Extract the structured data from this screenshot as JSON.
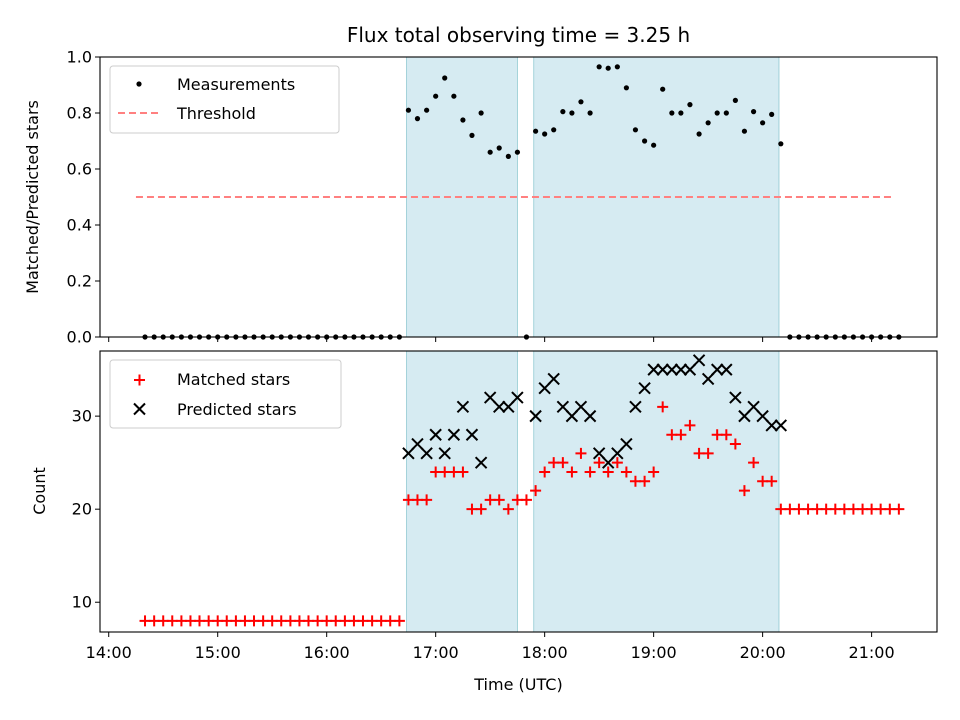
{
  "chart_data": {
    "title": "Flux total observing time = 3.25 h",
    "xlabel": "Time (UTC)",
    "x_ticks": [
      "14:00",
      "15:00",
      "16:00",
      "17:00",
      "18:00",
      "19:00",
      "20:00",
      "21:00"
    ],
    "x_range_hours": [
      13.92,
      21.6
    ],
    "shaded_intervals_hours": [
      [
        16.733,
        17.75
      ],
      [
        17.9,
        20.15
      ]
    ],
    "panels": [
      {
        "type": "scatter",
        "ylabel": "Matched/Predicted stars",
        "ylim": [
          0,
          1.0
        ],
        "y_ticks": [
          "0.0",
          "0.2",
          "0.4",
          "0.6",
          "0.8",
          "1.0"
        ],
        "legend_position": "upper-left",
        "series": [
          {
            "name": "Measurements",
            "marker": "dot",
            "color": "#000000",
            "x": [
              14.333,
              14.417,
              14.5,
              14.583,
              14.667,
              14.75,
              14.833,
              14.917,
              15.0,
              15.083,
              15.167,
              15.25,
              15.333,
              15.417,
              15.5,
              15.583,
              15.667,
              15.75,
              15.833,
              15.917,
              16.0,
              16.083,
              16.167,
              16.25,
              16.333,
              16.417,
              16.5,
              16.583,
              16.667,
              16.75,
              16.833,
              16.917,
              17.0,
              17.083,
              17.167,
              17.25,
              17.333,
              17.417,
              17.5,
              17.583,
              17.667,
              17.75,
              17.833,
              17.917,
              18.0,
              18.083,
              18.167,
              18.25,
              18.333,
              18.417,
              18.5,
              18.583,
              18.667,
              18.75,
              18.833,
              18.917,
              19.0,
              19.083,
              19.167,
              19.25,
              19.333,
              19.417,
              19.5,
              19.583,
              19.667,
              19.75,
              19.833,
              19.917,
              20.0,
              20.083,
              20.167,
              20.25,
              20.333,
              20.417,
              20.5,
              20.583,
              20.667,
              20.75,
              20.833,
              20.917,
              21.0,
              21.083,
              21.167,
              21.25
            ],
            "y": [
              0,
              0,
              0,
              0,
              0,
              0,
              0,
              0,
              0,
              0,
              0,
              0,
              0,
              0,
              0,
              0,
              0,
              0,
              0,
              0,
              0,
              0,
              0,
              0,
              0,
              0,
              0,
              0,
              0,
              0.81,
              0.78,
              0.81,
              0.86,
              0.925,
              0.86,
              0.775,
              0.72,
              0.8,
              0.66,
              0.675,
              0.645,
              0.66,
              0,
              0.735,
              0.725,
              0.74,
              0.805,
              0.8,
              0.84,
              0.8,
              0.965,
              0.96,
              0.965,
              0.89,
              0.74,
              0.7,
              0.685,
              0.885,
              0.8,
              0.8,
              0.83,
              0.725,
              0.765,
              0.8,
              0.8,
              0.845,
              0.735,
              0.805,
              0.765,
              0.795,
              0.69,
              0,
              0,
              0,
              0,
              0,
              0,
              0,
              0,
              0,
              0,
              0,
              0,
              0
            ]
          },
          {
            "name": "Threshold",
            "line_style": "dashed",
            "color": "#ff8080",
            "x": [
              14.25,
              21.2
            ],
            "y": [
              0.5,
              0.5
            ]
          }
        ]
      },
      {
        "type": "scatter",
        "ylabel": "Count",
        "ylim": [
          6.8,
          37.0
        ],
        "y_ticks": [
          "10",
          "20",
          "30"
        ],
        "legend_position": "upper-left",
        "series": [
          {
            "name": "Matched stars",
            "marker": "plus",
            "color": "#ff0000",
            "x": [
              14.333,
              14.417,
              14.5,
              14.583,
              14.667,
              14.75,
              14.833,
              14.917,
              15.0,
              15.083,
              15.167,
              15.25,
              15.333,
              15.417,
              15.5,
              15.583,
              15.667,
              15.75,
              15.833,
              15.917,
              16.0,
              16.083,
              16.167,
              16.25,
              16.333,
              16.417,
              16.5,
              16.583,
              16.667,
              16.75,
              16.833,
              16.917,
              17.0,
              17.083,
              17.167,
              17.25,
              17.333,
              17.417,
              17.5,
              17.583,
              17.667,
              17.75,
              17.833,
              17.917,
              18.0,
              18.083,
              18.167,
              18.25,
              18.333,
              18.417,
              18.5,
              18.583,
              18.667,
              18.75,
              18.833,
              18.917,
              19.0,
              19.083,
              19.167,
              19.25,
              19.333,
              19.417,
              19.5,
              19.583,
              19.667,
              19.75,
              19.833,
              19.917,
              20.0,
              20.083,
              20.167,
              20.25,
              20.333,
              20.417,
              20.5,
              20.583,
              20.667,
              20.75,
              20.833,
              20.917,
              21.0,
              21.083,
              21.167,
              21.25
            ],
            "y": [
              8,
              8,
              8,
              8,
              8,
              8,
              8,
              8,
              8,
              8,
              8,
              8,
              8,
              8,
              8,
              8,
              8,
              8,
              8,
              8,
              8,
              8,
              8,
              8,
              8,
              8,
              8,
              8,
              8,
              21,
              21,
              21,
              24,
              24,
              24,
              24,
              20,
              20,
              21,
              21,
              20,
              21,
              21,
              22,
              24,
              25,
              25,
              24,
              26,
              24,
              25,
              24,
              25,
              24,
              23,
              23,
              24,
              31,
              28,
              28,
              29,
              26,
              26,
              28,
              28,
              27,
              22,
              25,
              23,
              23,
              20,
              20,
              20,
              20,
              20,
              20,
              20,
              20,
              20,
              20,
              20,
              20,
              20,
              20
            ]
          },
          {
            "name": "Predicted stars",
            "marker": "x",
            "color": "#000000",
            "x": [
              16.75,
              16.833,
              16.917,
              17.0,
              17.083,
              17.167,
              17.25,
              17.333,
              17.417,
              17.5,
              17.583,
              17.667,
              17.75,
              17.917,
              18.0,
              18.083,
              18.167,
              18.25,
              18.333,
              18.417,
              18.5,
              18.583,
              18.667,
              18.75,
              18.833,
              18.917,
              19.0,
              19.083,
              19.167,
              19.25,
              19.333,
              19.417,
              19.5,
              19.583,
              19.667,
              19.75,
              19.833,
              19.917,
              20.0,
              20.083,
              20.167
            ],
            "y": [
              26,
              27,
              26,
              28,
              26,
              28,
              31,
              28,
              25,
              32,
              31,
              31,
              32,
              30,
              33,
              34,
              31,
              30,
              31,
              30,
              26,
              25,
              26,
              27,
              31,
              33,
              35,
              35,
              35,
              35,
              35,
              36,
              34,
              35,
              35,
              32,
              30,
              31,
              30,
              29,
              29
            ]
          }
        ]
      }
    ]
  }
}
